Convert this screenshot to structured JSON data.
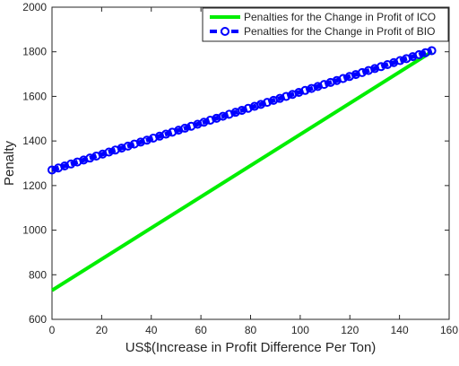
{
  "chart_data": {
    "type": "line",
    "title": "",
    "xlabel": "US$(Increase in Profit Difference Per Ton)",
    "ylabel": "Penalty",
    "xlim": [
      0,
      160
    ],
    "ylim": [
      600,
      2000
    ],
    "xticks": [
      0,
      20,
      40,
      60,
      80,
      100,
      120,
      140,
      160
    ],
    "yticks": [
      600,
      800,
      1000,
      1200,
      1400,
      1600,
      1800,
      2000
    ],
    "grid": false,
    "legend_position": "top-right",
    "series": [
      {
        "name": "Penalties for the Change in Profit of ICO",
        "color": "#00ee00",
        "style": "solid",
        "marker": "none",
        "x": [
          0,
          153
        ],
        "y": [
          730,
          1800
        ]
      },
      {
        "name": "Penalties for the Change in Profit of BIO",
        "color": "#0000ff",
        "style": "dashed",
        "marker": "circle",
        "x": [
          0,
          153
        ],
        "y": [
          1270,
          1805
        ]
      }
    ]
  }
}
